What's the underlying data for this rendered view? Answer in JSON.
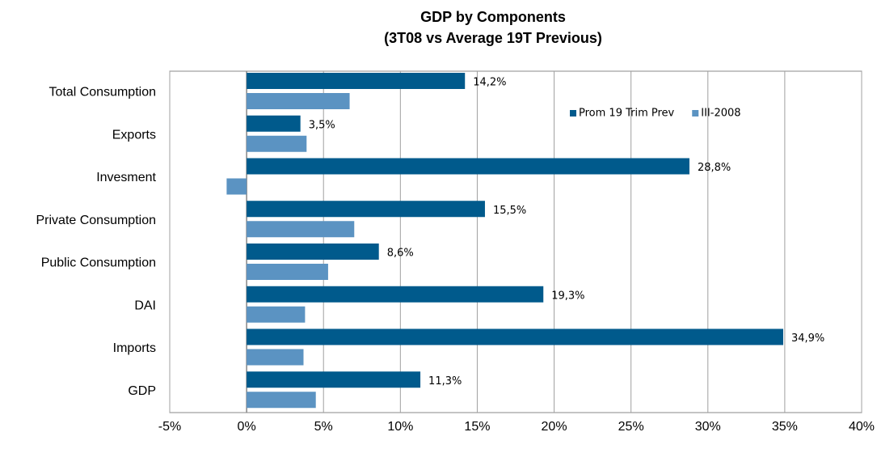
{
  "chart_data": {
    "type": "hbar",
    "title": "GDP by Components",
    "subtitle": "(3T08 vs Average 19T Previous)",
    "categories": [
      "Total Consumption",
      "Exports",
      "Invesment",
      "Private Consumption",
      "Public Consumption",
      "DAI",
      "Imports",
      "GDP"
    ],
    "series": [
      {
        "name": "Prom 19 Trim Prev",
        "color": "#005a8c",
        "values": [
          14.2,
          3.5,
          28.8,
          15.5,
          8.6,
          19.3,
          34.9,
          11.3
        ],
        "value_labels": [
          "14,2%",
          "3,5%",
          "28,8%",
          "15,5%",
          "8,6%",
          "19,3%",
          "34,9%",
          "11,3%"
        ]
      },
      {
        "name": "III-2008",
        "color": "#5b93c2",
        "values": [
          6.7,
          3.9,
          -1.3,
          7.0,
          5.3,
          3.8,
          3.7,
          4.5
        ]
      }
    ],
    "xlim": [
      -5,
      40
    ],
    "xticks": [
      {
        "value": -5,
        "label": "-5%"
      },
      {
        "value": 0,
        "label": "0%"
      },
      {
        "value": 5,
        "label": "5%"
      },
      {
        "value": 10,
        "label": "10%"
      },
      {
        "value": 15,
        "label": "15%"
      },
      {
        "value": 20,
        "label": "20%"
      },
      {
        "value": 25,
        "label": "25%"
      },
      {
        "value": 30,
        "label": "30%"
      },
      {
        "value": 35,
        "label": "35%"
      },
      {
        "value": 40,
        "label": "40%"
      }
    ],
    "grid": true,
    "legend": "top-right"
  }
}
